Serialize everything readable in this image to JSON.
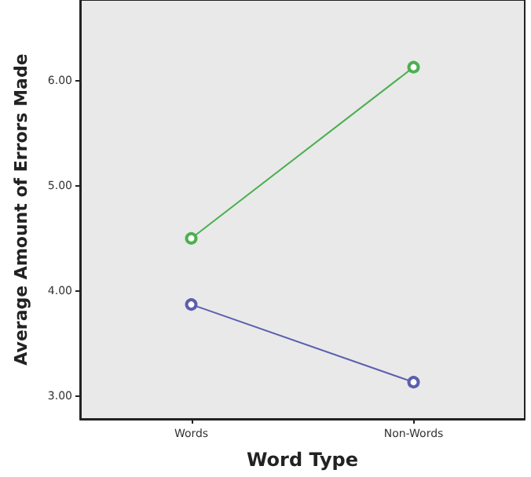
{
  "chart_data": {
    "type": "line",
    "xlabel": "Word Type",
    "ylabel": "Average Amount of Errors Made",
    "categories": [
      "Words",
      "Non-Words"
    ],
    "series": [
      {
        "color": "#4cb050",
        "values": [
          4.5,
          6.13
        ]
      },
      {
        "color": "#5b5fae",
        "values": [
          3.87,
          3.13
        ]
      }
    ],
    "ylim": [
      2.78,
      6.77
    ],
    "yticks": [
      {
        "value": 3,
        "label": "3.00"
      },
      {
        "value": 4,
        "label": "4.00"
      },
      {
        "value": 5,
        "label": "5.00"
      },
      {
        "value": 6,
        "label": "6.00"
      }
    ],
    "grid": false,
    "marker": "circle",
    "line_style": "solid"
  }
}
